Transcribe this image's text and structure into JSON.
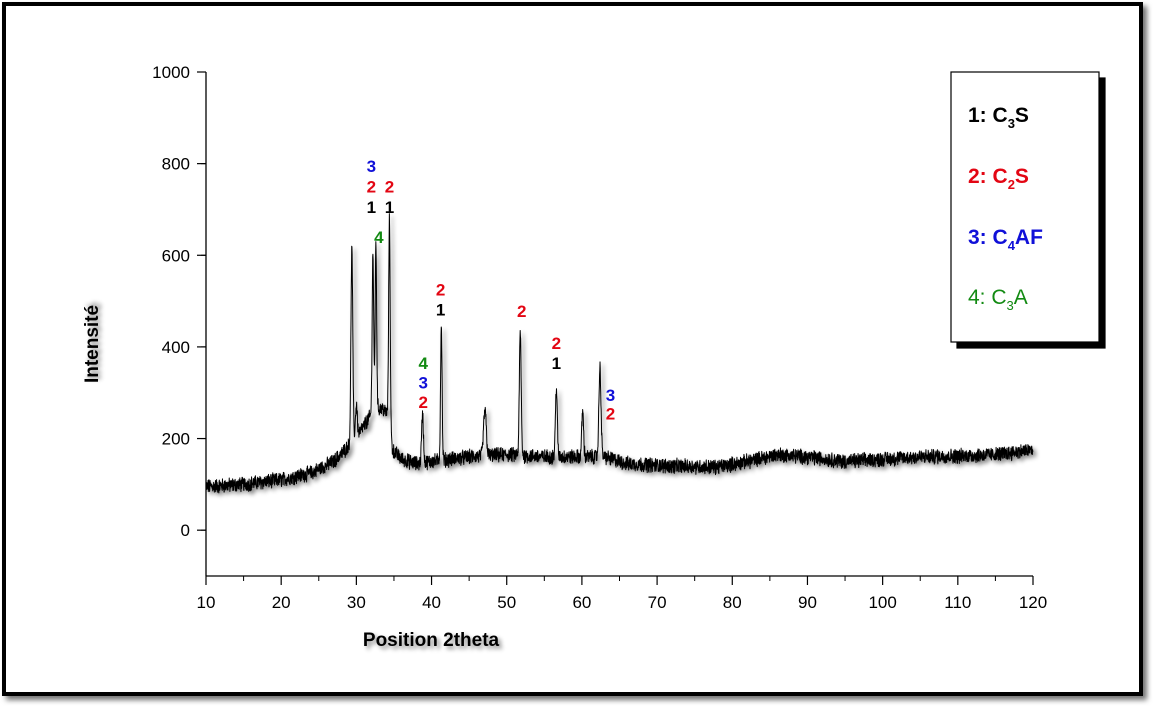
{
  "chart_data": {
    "type": "line",
    "title": "",
    "xlabel": "Position 2theta",
    "ylabel": "Intensité",
    "xlim": [
      10,
      120
    ],
    "ylim": [
      -100,
      1000
    ],
    "xticks": [
      10,
      20,
      30,
      40,
      50,
      60,
      70,
      80,
      90,
      100,
      110,
      120
    ],
    "yticks": [
      0,
      200,
      400,
      600,
      800,
      1000
    ],
    "grid": false,
    "legend_position": "top-right",
    "colors": {
      "phase1": "#000000",
      "phase2": "#e30613",
      "phase3": "#1010d8",
      "phase4": "#128a12",
      "line": "#000000"
    },
    "legend": [
      {
        "id": "1",
        "prefix": "1: C",
        "sub": "3",
        "suffix": "S",
        "color": "#000000",
        "bold": true
      },
      {
        "id": "2",
        "prefix": "2: C",
        "sub": "2",
        "suffix": "S",
        "color": "#e30613",
        "bold": true
      },
      {
        "id": "3",
        "prefix": "3: C",
        "sub": "4",
        "suffix": "AF",
        "color": "#1010d8",
        "bold": true
      },
      {
        "id": "4",
        "prefix": "4: C",
        "sub": "3",
        "suffix": "A",
        "color": "#128a12",
        "bold": false
      }
    ],
    "series": [
      {
        "color": "#000000",
        "noise_amplitude": 14,
        "baseline": [
          [
            10,
            95
          ],
          [
            15,
            100
          ],
          [
            20,
            110
          ],
          [
            24,
            125
          ],
          [
            27,
            150
          ],
          [
            28.5,
            175
          ],
          [
            29.5,
            195
          ],
          [
            30.5,
            215
          ],
          [
            31.5,
            240
          ],
          [
            32.5,
            265
          ],
          [
            33.5,
            265
          ],
          [
            34.3,
            250
          ],
          [
            34.8,
            175
          ],
          [
            36,
            155
          ],
          [
            38,
            145
          ],
          [
            40,
            150
          ],
          [
            45,
            160
          ],
          [
            50,
            165
          ],
          [
            55,
            160
          ],
          [
            60,
            160
          ],
          [
            63,
            160
          ],
          [
            66,
            145
          ],
          [
            72,
            140
          ],
          [
            78,
            138
          ],
          [
            82,
            150
          ],
          [
            86,
            165
          ],
          [
            90,
            160
          ],
          [
            95,
            150
          ],
          [
            100,
            155
          ],
          [
            105,
            160
          ],
          [
            110,
            162
          ],
          [
            115,
            165
          ],
          [
            120,
            175
          ]
        ],
        "peaks": [
          {
            "x": 29.4,
            "y": 615,
            "w": 0.12
          },
          {
            "x": 30.0,
            "y": 275,
            "w": 0.12
          },
          {
            "x": 32.2,
            "y": 605,
            "w": 0.1
          },
          {
            "x": 32.6,
            "y": 620,
            "w": 0.1
          },
          {
            "x": 34.4,
            "y": 675,
            "w": 0.1
          },
          {
            "x": 38.8,
            "y": 255,
            "w": 0.12
          },
          {
            "x": 41.3,
            "y": 448,
            "w": 0.1
          },
          {
            "x": 47.1,
            "y": 262,
            "w": 0.18
          },
          {
            "x": 51.8,
            "y": 432,
            "w": 0.12
          },
          {
            "x": 56.6,
            "y": 312,
            "w": 0.12
          },
          {
            "x": 60.1,
            "y": 262,
            "w": 0.12
          },
          {
            "x": 62.4,
            "y": 355,
            "w": 0.14
          }
        ]
      }
    ],
    "annotations": [
      {
        "text": "3",
        "x": 32.0,
        "y": 795,
        "color": "#1010d8"
      },
      {
        "text": "2",
        "x": 32.0,
        "y": 750,
        "color": "#e30613"
      },
      {
        "text": "2",
        "x": 34.4,
        "y": 750,
        "color": "#e30613"
      },
      {
        "text": "1",
        "x": 32.0,
        "y": 705,
        "color": "#000000"
      },
      {
        "text": "1",
        "x": 34.4,
        "y": 705,
        "color": "#000000"
      },
      {
        "text": "4",
        "x": 33.0,
        "y": 640,
        "color": "#128a12"
      },
      {
        "text": "2",
        "x": 41.2,
        "y": 525,
        "color": "#e30613"
      },
      {
        "text": "1",
        "x": 41.2,
        "y": 482,
        "color": "#000000"
      },
      {
        "text": "2",
        "x": 52.0,
        "y": 478,
        "color": "#e30613"
      },
      {
        "text": "2",
        "x": 56.6,
        "y": 408,
        "color": "#e30613"
      },
      {
        "text": "1",
        "x": 56.6,
        "y": 365,
        "color": "#000000"
      },
      {
        "text": "4",
        "x": 38.9,
        "y": 365,
        "color": "#128a12"
      },
      {
        "text": "3",
        "x": 38.9,
        "y": 322,
        "color": "#1010d8"
      },
      {
        "text": "2",
        "x": 38.9,
        "y": 280,
        "color": "#e30613"
      },
      {
        "text": "3",
        "x": 63.8,
        "y": 295,
        "color": "#1010d8"
      },
      {
        "text": "2",
        "x": 63.8,
        "y": 255,
        "color": "#e30613"
      }
    ]
  }
}
